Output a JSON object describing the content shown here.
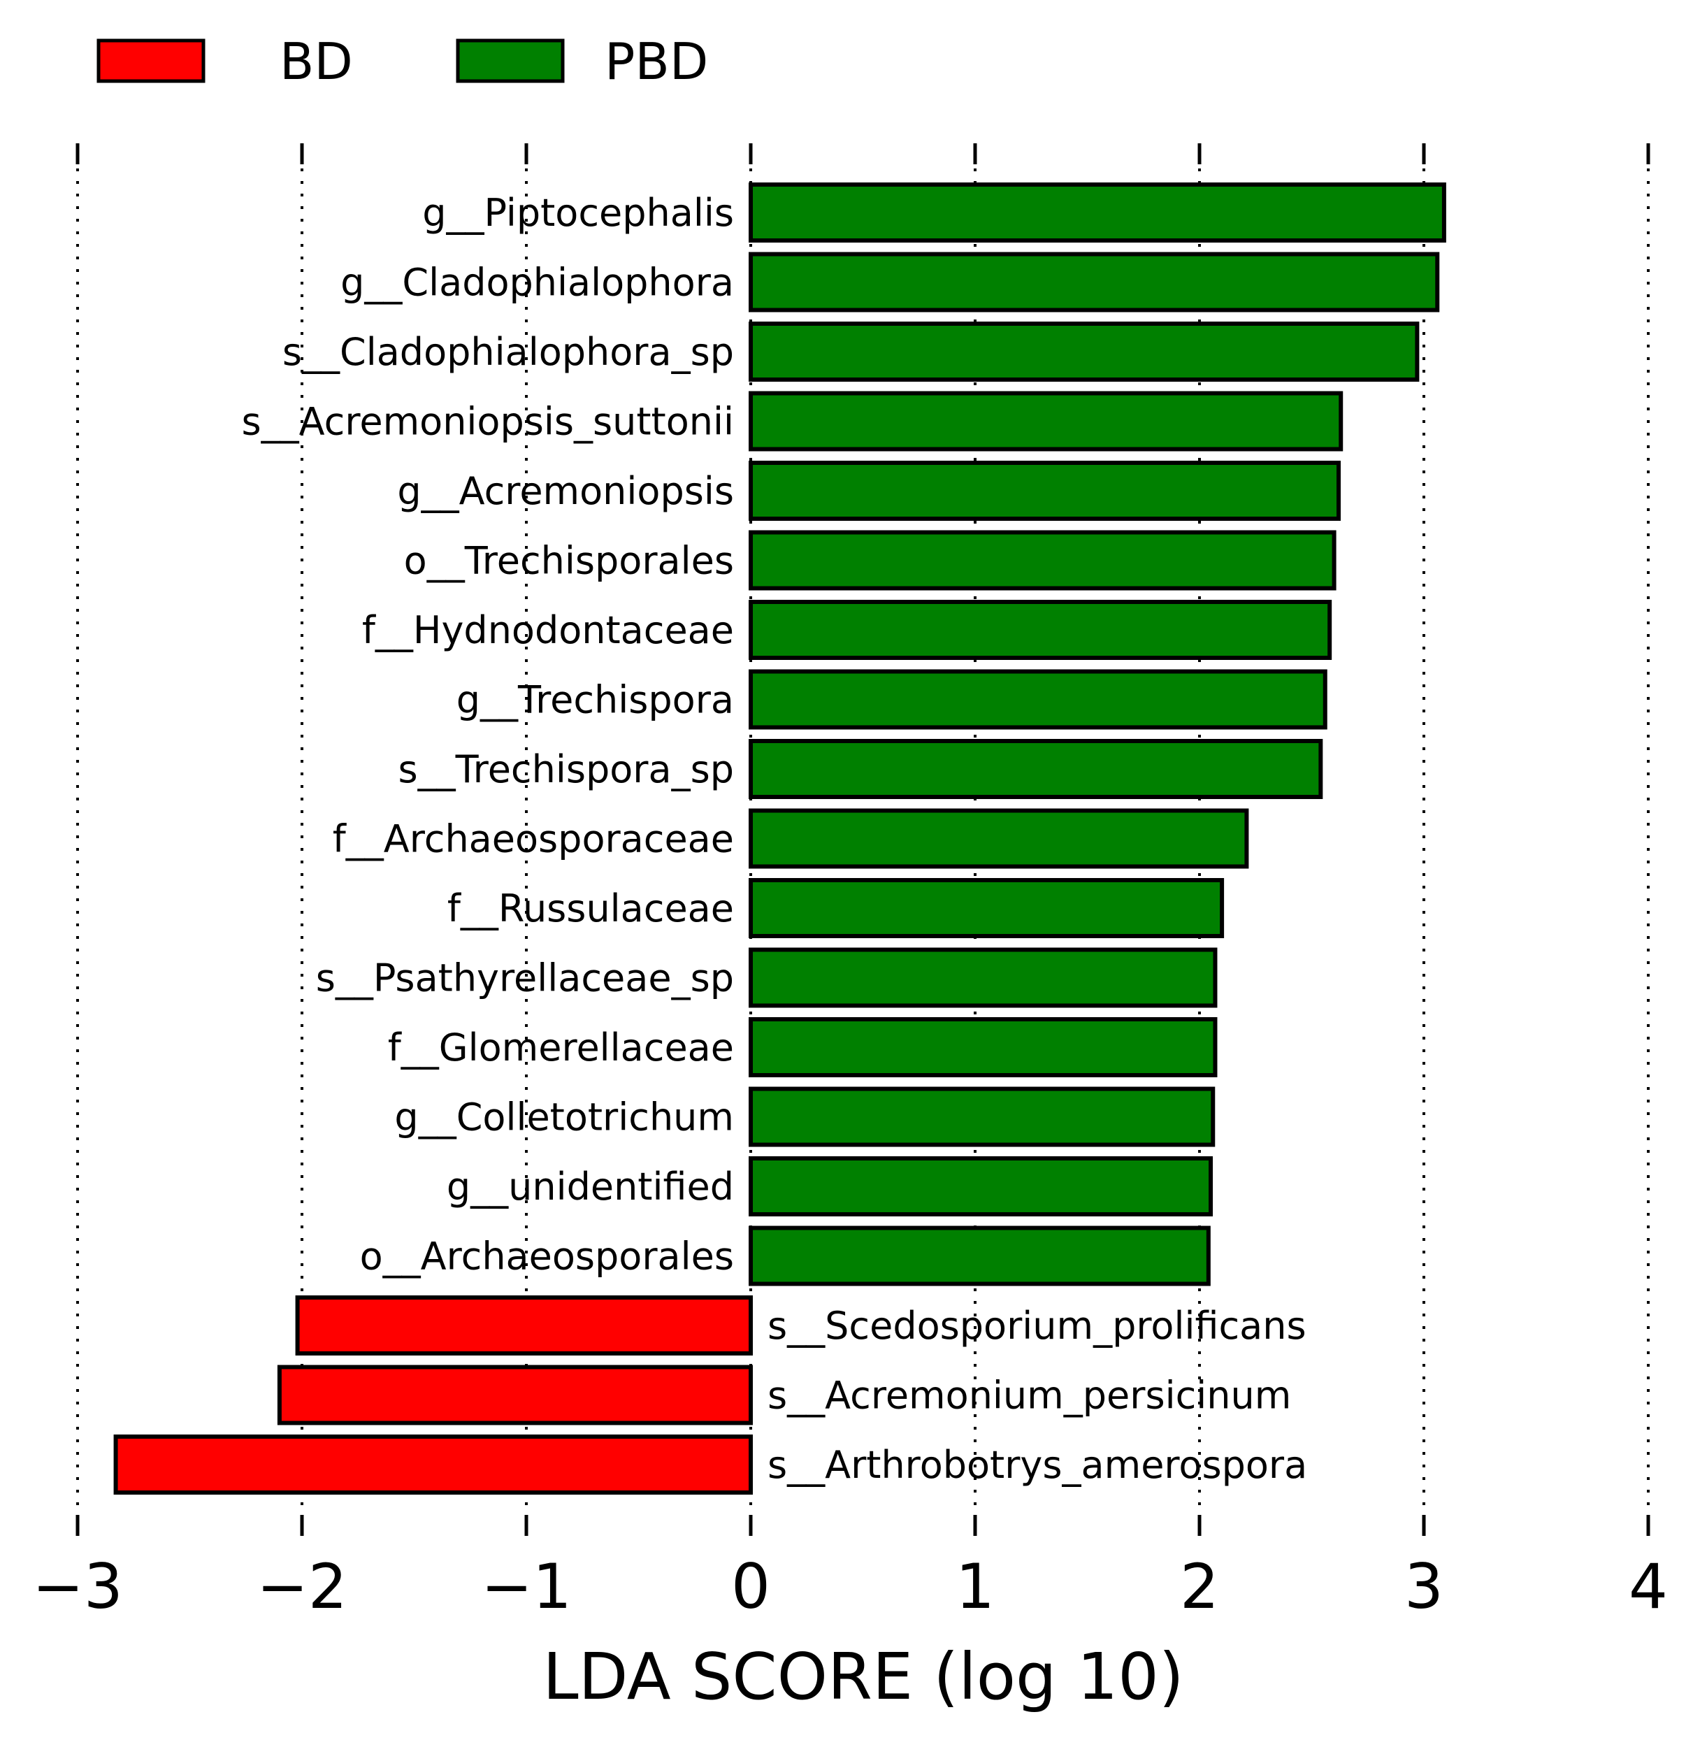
{
  "chart_data": {
    "type": "bar",
    "orientation": "horizontal",
    "xlabel": "LDA SCORE (log 10)",
    "xlim": [
      -3,
      4
    ],
    "xticks": [
      -3,
      -2,
      -1,
      0,
      1,
      2,
      3,
      4
    ],
    "xtick_labels": [
      "−3",
      "−2",
      "−1",
      "0",
      "1",
      "2",
      "3",
      "4"
    ],
    "grid": "vertical dotted",
    "legend": {
      "placement": "top-left",
      "entries": [
        {
          "name": "BD",
          "color": "#ff0000"
        },
        {
          "name": "PBD",
          "color": "#008000"
        }
      ]
    },
    "bars": [
      {
        "label": "g__Piptocephalis",
        "value": 3.09,
        "group": "PBD"
      },
      {
        "label": "g__Cladophialophora",
        "value": 3.06,
        "group": "PBD"
      },
      {
        "label": "s__Cladophialophora_sp",
        "value": 2.97,
        "group": "PBD"
      },
      {
        "label": "s__Acremoniopsis_suttonii",
        "value": 2.63,
        "group": "PBD"
      },
      {
        "label": "g__Acremoniopsis",
        "value": 2.62,
        "group": "PBD"
      },
      {
        "label": "o__Trechisporales",
        "value": 2.6,
        "group": "PBD"
      },
      {
        "label": "f__Hydnodontaceae",
        "value": 2.58,
        "group": "PBD"
      },
      {
        "label": "g__Trechispora",
        "value": 2.56,
        "group": "PBD"
      },
      {
        "label": "s__Trechispora_sp",
        "value": 2.54,
        "group": "PBD"
      },
      {
        "label": "f__Archaeosporaceae",
        "value": 2.21,
        "group": "PBD"
      },
      {
        "label": "f__Russulaceae",
        "value": 2.1,
        "group": "PBD"
      },
      {
        "label": "s__Psathyrellaceae_sp",
        "value": 2.07,
        "group": "PBD"
      },
      {
        "label": "f__Glomerellaceae",
        "value": 2.07,
        "group": "PBD"
      },
      {
        "label": "g__Colletotrichum",
        "value": 2.06,
        "group": "PBD"
      },
      {
        "label": "g__unidentified",
        "value": 2.05,
        "group": "PBD"
      },
      {
        "label": "o__Archaeosporales",
        "value": 2.04,
        "group": "PBD"
      },
      {
        "label": "s__Scedosporium_prolificans",
        "value": -2.02,
        "group": "BD"
      },
      {
        "label": "s__Acremonium_persicinum",
        "value": -2.1,
        "group": "BD"
      },
      {
        "label": "s__Arthrobotrys_amerospora",
        "value": -2.83,
        "group": "BD"
      }
    ]
  }
}
